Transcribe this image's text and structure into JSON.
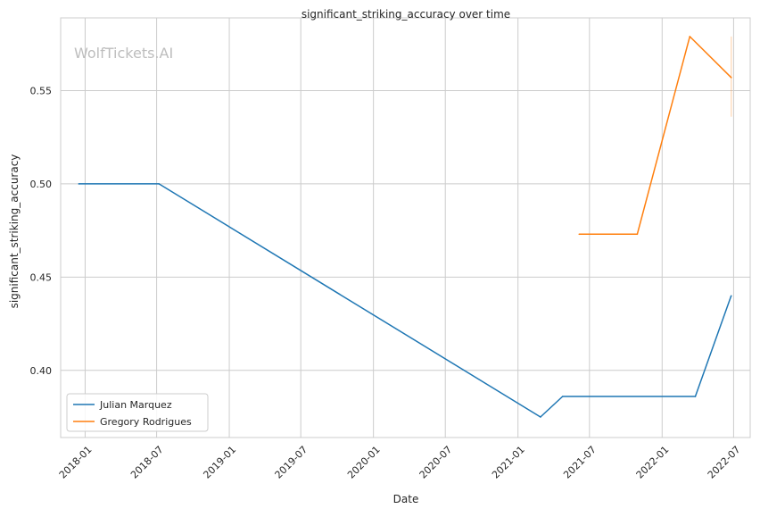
{
  "chart_data": {
    "type": "line",
    "title": "significant_striking_accuracy over time",
    "xlabel": "Date",
    "ylabel": "significant_striking_accuracy",
    "watermark": "WolfTickets.AI",
    "x_ticks": [
      "2018-01",
      "2018-07",
      "2019-01",
      "2019-07",
      "2020-01",
      "2020-07",
      "2021-01",
      "2021-07",
      "2022-01",
      "2022-07"
    ],
    "y_ticks": [
      "0.40",
      "0.45",
      "0.50",
      "0.55"
    ],
    "xlim": [
      "2017-10-31",
      "2022-08-12"
    ],
    "ylim": [
      0.364,
      0.589
    ],
    "grid": true,
    "legend_position": "lower-left",
    "series": [
      {
        "name": "Julian Marquez",
        "color": "#1f77b4",
        "points": [
          {
            "x": "2017-12-16",
            "y": 0.5
          },
          {
            "x": "2018-07-07",
            "y": 0.5
          },
          {
            "x": "2021-02-27",
            "y": 0.375
          },
          {
            "x": "2021-04-24",
            "y": 0.386
          },
          {
            "x": "2022-03-26",
            "y": 0.386
          },
          {
            "x": "2022-06-25",
            "y": 0.44
          }
        ]
      },
      {
        "name": "Gregory Rodrigues",
        "color": "#ff7f0e",
        "points": [
          {
            "x": "2021-06-05",
            "y": 0.473
          },
          {
            "x": "2021-10-30",
            "y": 0.473
          },
          {
            "x": "2022-03-12",
            "y": 0.579
          },
          {
            "x": "2022-06-25",
            "y": 0.557
          }
        ],
        "error_band": {
          "x": "2022-06-25",
          "low": 0.536,
          "high": 0.579
        }
      }
    ]
  }
}
